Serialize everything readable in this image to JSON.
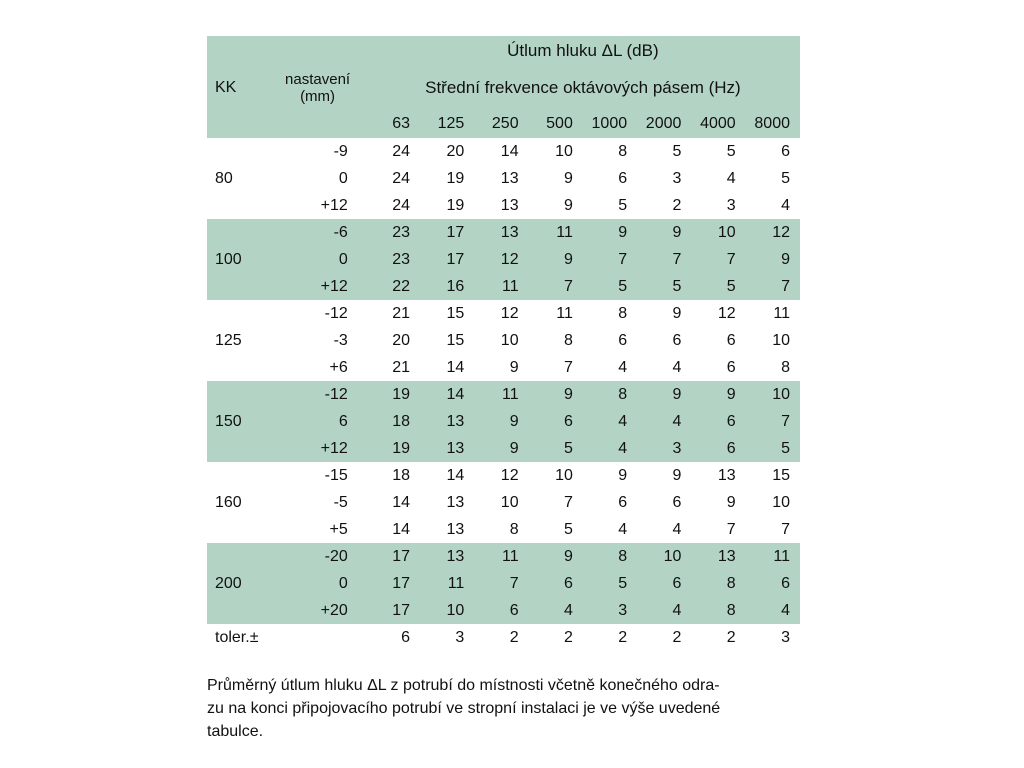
{
  "table": {
    "accent_color": "#b3d4c5",
    "title": "Útlum hluku ΔL (dB)",
    "kk_label": "KK",
    "nastaveni_label_line1": "nastavení",
    "nastaveni_label_line2": "(mm)",
    "freq_band_label": "Střední frekvence oktávových pásem (Hz)",
    "frequencies": [
      "63",
      "125",
      "250",
      "500",
      "1000",
      "2000",
      "4000",
      "8000"
    ],
    "groups": [
      {
        "kk": "80",
        "rows": [
          {
            "setting": "-9",
            "values": [
              24,
              20,
              14,
              10,
              8,
              5,
              5,
              6
            ]
          },
          {
            "setting": "0",
            "values": [
              24,
              19,
              13,
              9,
              6,
              3,
              4,
              5
            ]
          },
          {
            "setting": "+12",
            "values": [
              24,
              19,
              13,
              9,
              5,
              2,
              3,
              4
            ]
          }
        ]
      },
      {
        "kk": "100",
        "rows": [
          {
            "setting": "-6",
            "values": [
              23,
              17,
              13,
              11,
              9,
              9,
              10,
              12
            ]
          },
          {
            "setting": "0",
            "values": [
              23,
              17,
              12,
              9,
              7,
              7,
              7,
              9
            ]
          },
          {
            "setting": "+12",
            "values": [
              22,
              16,
              11,
              7,
              5,
              5,
              5,
              7
            ]
          }
        ]
      },
      {
        "kk": "125",
        "rows": [
          {
            "setting": "-12",
            "values": [
              21,
              15,
              12,
              11,
              8,
              9,
              12,
              11
            ]
          },
          {
            "setting": "-3",
            "values": [
              20,
              15,
              10,
              8,
              6,
              6,
              6,
              10
            ]
          },
          {
            "setting": "+6",
            "values": [
              21,
              14,
              9,
              7,
              4,
              4,
              6,
              8
            ]
          }
        ]
      },
      {
        "kk": "150",
        "rows": [
          {
            "setting": "-12",
            "values": [
              19,
              14,
              11,
              9,
              8,
              9,
              9,
              10
            ]
          },
          {
            "setting": "6",
            "values": [
              18,
              13,
              9,
              6,
              4,
              4,
              6,
              7
            ]
          },
          {
            "setting": "+12",
            "values": [
              19,
              13,
              9,
              5,
              4,
              3,
              6,
              5
            ]
          }
        ]
      },
      {
        "kk": "160",
        "rows": [
          {
            "setting": "-15",
            "values": [
              18,
              14,
              12,
              10,
              9,
              9,
              13,
              15
            ]
          },
          {
            "setting": "-5",
            "values": [
              14,
              13,
              10,
              7,
              6,
              6,
              9,
              10
            ]
          },
          {
            "setting": "+5",
            "values": [
              14,
              13,
              8,
              5,
              4,
              4,
              7,
              7
            ]
          }
        ]
      },
      {
        "kk": "200",
        "rows": [
          {
            "setting": "-20",
            "values": [
              17,
              13,
              11,
              9,
              8,
              10,
              13,
              11
            ]
          },
          {
            "setting": "0",
            "values": [
              17,
              11,
              7,
              6,
              5,
              6,
              8,
              6
            ]
          },
          {
            "setting": "+20",
            "values": [
              17,
              10,
              6,
              4,
              3,
              4,
              8,
              4
            ]
          }
        ]
      }
    ],
    "tolerance_row": {
      "label": "toler.±",
      "values": [
        6,
        3,
        2,
        2,
        2,
        2,
        2,
        3
      ]
    }
  },
  "caption": {
    "lines": [
      "Průměrný útlum hluku ΔL z potrubí do místnosti včetně konečného odra-",
      "zu na konci připojovacího potrubí ve stropní instalaci je ve výše uvedené",
      "tabulce."
    ]
  }
}
